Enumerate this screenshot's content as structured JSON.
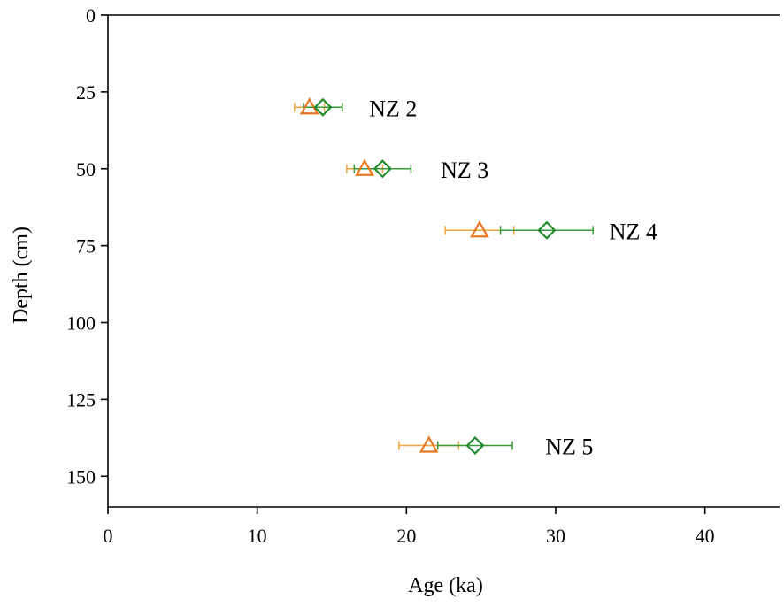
{
  "chart_data": {
    "type": "scatter",
    "xlabel": "Age (ka)",
    "ylabel": "Depth (cm)",
    "xlim": [
      0,
      45
    ],
    "ylim": [
      0,
      160
    ],
    "y_inverted": true,
    "x_ticks": [
      "0",
      "10",
      "20",
      "30",
      "40"
    ],
    "y_ticks": [
      "0",
      "25",
      "50",
      "75",
      "100",
      "125",
      "150"
    ],
    "grid": false,
    "colors": {
      "triangle": "#e87722",
      "diamond": "#1f8a2e",
      "triangle_errorbar": "#f0a640",
      "diamond_errorbar": "#3a9a3a"
    },
    "series": [
      {
        "marker": "triangle",
        "points": [
          {
            "sample": "NZ 2",
            "depth": 30,
            "age": 13.5,
            "err": 1.0
          },
          {
            "sample": "NZ 3",
            "depth": 50,
            "age": 17.2,
            "err": 1.2
          },
          {
            "sample": "NZ 4",
            "depth": 70,
            "age": 24.9,
            "err": 2.3
          },
          {
            "sample": "NZ 5",
            "depth": 140,
            "age": 21.5,
            "err": 2.0
          }
        ]
      },
      {
        "marker": "diamond",
        "points": [
          {
            "sample": "NZ 2",
            "depth": 30,
            "age": 14.4,
            "err": 1.3
          },
          {
            "sample": "NZ 3",
            "depth": 50,
            "age": 18.4,
            "err": 1.9
          },
          {
            "sample": "NZ 4",
            "depth": 70,
            "age": 29.4,
            "err": 3.1
          },
          {
            "sample": "NZ 5",
            "depth": 140,
            "age": 24.6,
            "err": 2.5
          }
        ]
      }
    ],
    "annotations": [
      {
        "text": "NZ 2",
        "age": 17.5,
        "depth": 30
      },
      {
        "text": "NZ 3",
        "age": 22.3,
        "depth": 50
      },
      {
        "text": "NZ 4",
        "age": 33.6,
        "depth": 70
      },
      {
        "text": "NZ 5",
        "age": 29.3,
        "depth": 140
      }
    ]
  }
}
